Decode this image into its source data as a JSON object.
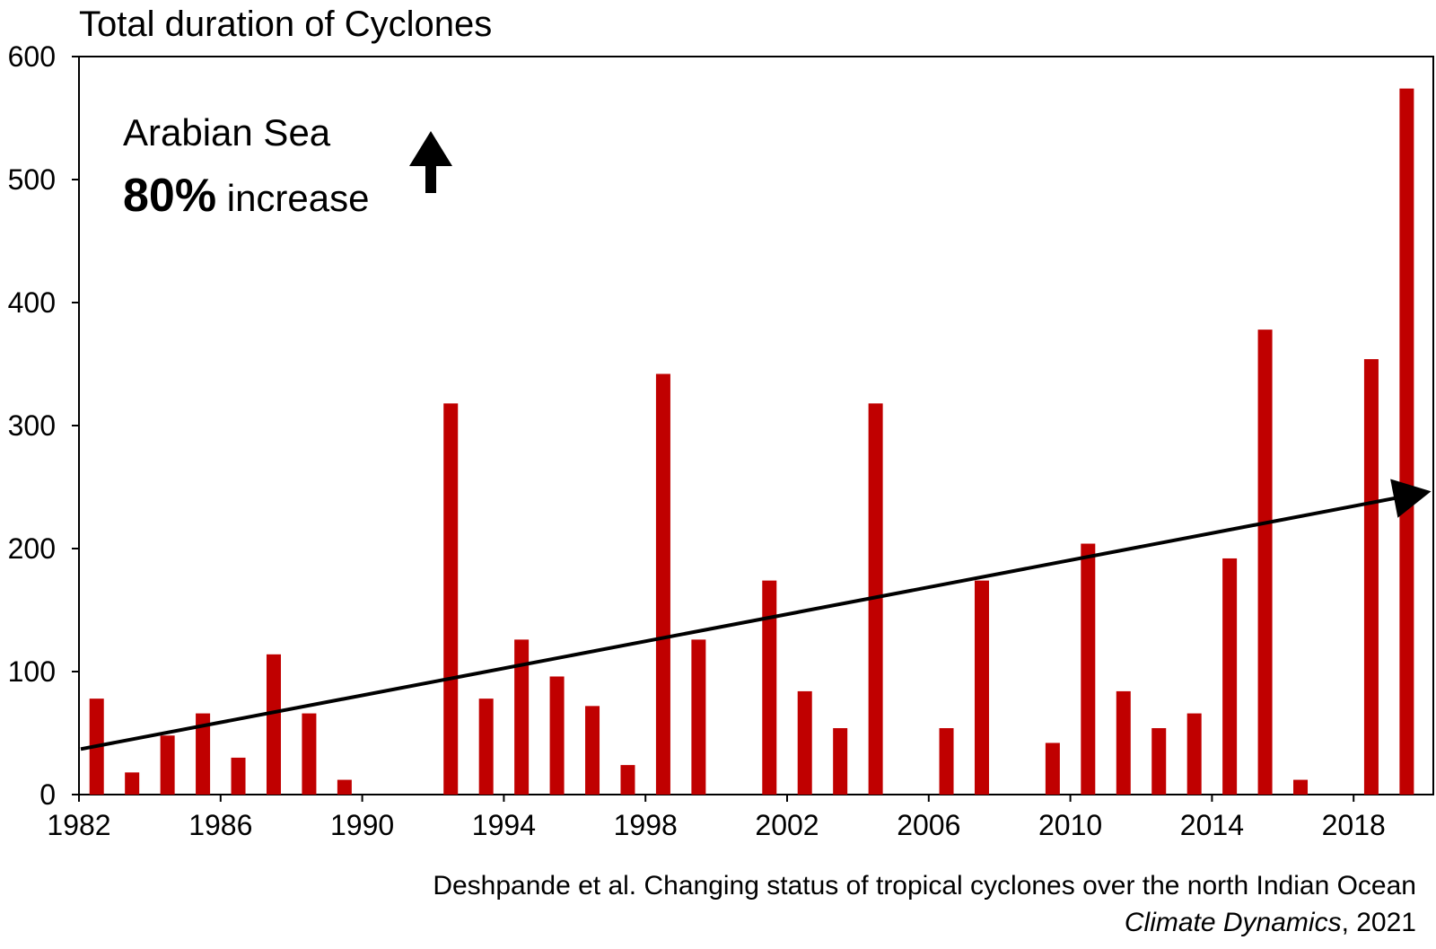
{
  "chart_data": {
    "type": "bar",
    "title": "Total duration of Cyclones",
    "xlabel": "",
    "ylabel": "",
    "ylim": [
      0,
      600
    ],
    "xlim": [
      1982,
      2020
    ],
    "y_ticks": [
      0,
      100,
      200,
      300,
      400,
      500,
      600
    ],
    "x_ticks": [
      1982,
      1986,
      1990,
      1994,
      1998,
      2002,
      2006,
      2010,
      2014,
      2018
    ],
    "bar_color": "#c00000",
    "grid": false,
    "years": [
      1982,
      1983,
      1984,
      1985,
      1986,
      1987,
      1988,
      1989,
      1990,
      1991,
      1992,
      1993,
      1994,
      1995,
      1996,
      1997,
      1998,
      1999,
      2000,
      2001,
      2002,
      2003,
      2004,
      2005,
      2006,
      2007,
      2008,
      2009,
      2010,
      2011,
      2012,
      2013,
      2014,
      2015,
      2016,
      2017,
      2018,
      2019
    ],
    "values": [
      78,
      18,
      48,
      66,
      30,
      114,
      66,
      12,
      0,
      0,
      318,
      78,
      126,
      96,
      72,
      24,
      342,
      126,
      0,
      174,
      84,
      54,
      318,
      0,
      54,
      174,
      0,
      42,
      204,
      84,
      54,
      66,
      192,
      378,
      12,
      0,
      354,
      574
    ],
    "trend": {
      "start": [
        1982,
        37
      ],
      "end": [
        2020,
        243
      ]
    },
    "annotation": {
      "line1": "Arabian Sea",
      "bold": "80%",
      "rest": " increase"
    }
  },
  "citation": {
    "line1": "Deshpande et al. Changing status of tropical cyclones over the north Indian Ocean",
    "line2_italic": "Climate Dynamics",
    "line2_rest": ", 2021"
  }
}
